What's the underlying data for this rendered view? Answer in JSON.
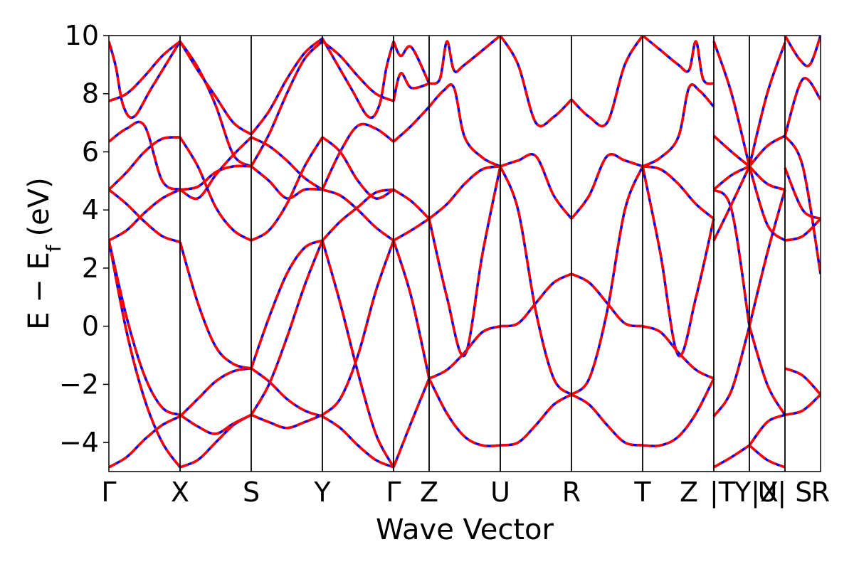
{
  "chart_data": {
    "type": "line",
    "title": "",
    "xlabel": "Wave Vector",
    "ylabel": "E − E",
    "ylabel_sub": "f",
    "ylabel_unit": "(eV)",
    "ylim": [
      -5,
      10
    ],
    "yticks": [
      -4,
      -2,
      0,
      2,
      4,
      6,
      8,
      10
    ],
    "ytick_labels": [
      "−4",
      "−2",
      "0",
      "2",
      "4",
      "6",
      "8",
      "10"
    ],
    "grid": false,
    "path_positions": [
      0,
      1,
      2,
      3,
      4,
      4.5,
      5.5,
      6.5,
      7.5,
      8.5,
      9.0,
      9.5,
      10.0
    ],
    "kpoint_labels": [
      "Γ",
      "X",
      "S",
      "Y",
      "Γ",
      "Z",
      "U",
      "R",
      "T",
      "Z",
      "|T",
      "Y|X",
      "U| S",
      "R"
    ],
    "kpoint_label_positions": [
      0,
      1,
      2,
      3,
      4,
      4.5,
      5.5,
      6.5,
      7.5,
      8.15,
      8.62,
      9.1,
      9.5,
      10.0
    ],
    "series_styles": [
      {
        "line": "solid",
        "color": "#0000ff"
      },
      {
        "line": "dashed",
        "color": "#ff0000"
      }
    ],
    "bands": [
      {
        "x": [
          0,
          0.25,
          0.5,
          0.75,
          1
        ],
        "y": [
          -4.85,
          -4.5,
          -3.9,
          -3.4,
          -3.1
        ]
      },
      {
        "x": [
          1,
          1.25,
          1.5,
          1.75,
          2
        ],
        "y": [
          -3.1,
          -2.5,
          -1.9,
          -1.55,
          -1.45
        ]
      },
      {
        "x": [
          2,
          2.25,
          2.5,
          2.75,
          3
        ],
        "y": [
          -1.45,
          -1.9,
          -2.5,
          -2.9,
          -3.1
        ]
      },
      {
        "x": [
          3,
          3.25,
          3.5,
          3.75,
          4
        ],
        "y": [
          -3.1,
          -3.5,
          -4.1,
          -4.6,
          -4.85
        ]
      },
      {
        "x": [
          0,
          0.25,
          0.5,
          0.75,
          1
        ],
        "y": [
          2.95,
          0.3,
          -1.7,
          -2.8,
          -3.05
        ]
      },
      {
        "x": [
          1,
          1.25,
          1.5,
          1.75,
          2
        ],
        "y": [
          -3.05,
          -3.45,
          -3.7,
          -3.35,
          -3.05
        ]
      },
      {
        "x": [
          2,
          2.25,
          2.5,
          2.75,
          3
        ],
        "y": [
          -3.05,
          -3.3,
          -3.5,
          -3.3,
          -3.05
        ]
      },
      {
        "x": [
          3,
          3.25,
          3.5,
          3.75,
          4
        ],
        "y": [
          -3.05,
          -2.5,
          -1.0,
          1.2,
          2.95
        ]
      },
      {
        "x": [
          0,
          0.25,
          0.5,
          0.75,
          1
        ],
        "y": [
          2.95,
          -0.2,
          -2.5,
          -4.0,
          -4.85
        ]
      },
      {
        "x": [
          1,
          1.25,
          1.5,
          1.75,
          2
        ],
        "y": [
          -4.85,
          -4.6,
          -4.0,
          -3.4,
          -3.05
        ]
      },
      {
        "x": [
          2,
          2.25,
          2.5,
          2.75,
          3
        ],
        "y": [
          -3.05,
          -2.0,
          -0.4,
          1.4,
          2.95
        ]
      },
      {
        "x": [
          3,
          3.25,
          3.5,
          3.75,
          4
        ],
        "y": [
          2.95,
          0.8,
          -1.6,
          -3.7,
          -4.85
        ]
      },
      {
        "x": [
          0,
          0.25,
          0.5,
          0.75,
          1
        ],
        "y": [
          4.7,
          4.2,
          3.6,
          3.1,
          2.9
        ]
      },
      {
        "x": [
          1,
          1.25,
          1.5,
          1.75,
          2
        ],
        "y": [
          2.9,
          0.8,
          -0.7,
          -1.3,
          -1.45
        ]
      },
      {
        "x": [
          2,
          2.25,
          2.5,
          2.75,
          3
        ],
        "y": [
          -1.45,
          0.3,
          1.8,
          2.7,
          2.95
        ]
      },
      {
        "x": [
          3,
          3.25,
          3.5,
          3.75,
          4
        ],
        "y": [
          2.95,
          3.6,
          4.1,
          4.6,
          4.7
        ]
      },
      {
        "x": [
          0,
          0.25,
          0.5,
          0.75,
          1
        ],
        "y": [
          2.95,
          3.3,
          3.9,
          4.4,
          4.7
        ]
      },
      {
        "x": [
          1,
          1.25,
          1.5,
          1.75,
          2
        ],
        "y": [
          4.7,
          4.8,
          5.3,
          5.5,
          5.5
        ]
      },
      {
        "x": [
          2,
          2.25,
          2.5,
          2.75,
          3
        ],
        "y": [
          5.5,
          5.0,
          4.4,
          4.7,
          4.7
        ]
      },
      {
        "x": [
          3,
          3.25,
          3.5,
          3.75,
          4
        ],
        "y": [
          4.7,
          4.5,
          4.0,
          3.4,
          2.95
        ]
      },
      {
        "x": [
          0,
          0.25,
          0.5,
          0.75,
          1
        ],
        "y": [
          4.7,
          5.3,
          6.0,
          6.45,
          6.5
        ]
      },
      {
        "x": [
          1,
          1.25,
          1.5,
          1.75,
          2
        ],
        "y": [
          6.5,
          5.5,
          4.1,
          3.3,
          2.95
        ]
      },
      {
        "x": [
          2,
          2.25,
          2.5,
          2.75,
          3
        ],
        "y": [
          2.95,
          3.3,
          4.2,
          5.5,
          6.5
        ]
      },
      {
        "x": [
          3,
          3.25,
          3.5,
          3.75,
          4
        ],
        "y": [
          6.5,
          6.0,
          5.0,
          4.4,
          4.7
        ]
      },
      {
        "x": [
          0,
          0.25,
          0.5,
          0.75,
          1
        ],
        "y": [
          6.35,
          6.8,
          6.9,
          5.0,
          4.7
        ]
      },
      {
        "x": [
          1,
          1.25,
          1.5,
          1.75,
          2
        ],
        "y": [
          4.7,
          4.4,
          5.2,
          5.9,
          6.5
        ]
      },
      {
        "x": [
          2,
          2.25,
          2.5,
          2.75,
          3
        ],
        "y": [
          6.5,
          6.2,
          5.7,
          5.1,
          4.7
        ]
      },
      {
        "x": [
          3,
          3.25,
          3.5,
          3.75,
          4
        ],
        "y": [
          4.7,
          6.0,
          6.9,
          6.8,
          6.35
        ]
      },
      {
        "x": [
          0,
          0.25,
          0.5,
          0.75,
          1
        ],
        "y": [
          7.75,
          8.0,
          8.6,
          9.3,
          9.8
        ]
      },
      {
        "x": [
          1,
          1.25,
          1.5,
          1.75,
          2
        ],
        "y": [
          9.8,
          8.9,
          7.6,
          5.9,
          5.5
        ]
      },
      {
        "x": [
          2,
          2.25,
          2.5,
          2.75,
          3
        ],
        "y": [
          5.5,
          6.6,
          8.0,
          9.2,
          9.8
        ]
      },
      {
        "x": [
          3,
          3.25,
          3.5,
          3.75,
          4
        ],
        "y": [
          9.8,
          9.3,
          8.6,
          8.0,
          7.75
        ]
      },
      {
        "x": [
          0,
          0.1,
          0.2,
          0.35,
          0.6,
          1
        ],
        "y": [
          9.8,
          8.9,
          7.6,
          7.2,
          8.2,
          9.8
        ]
      },
      {
        "x": [
          1,
          1.25,
          1.5,
          1.75,
          2
        ],
        "y": [
          9.8,
          8.8,
          7.9,
          7.0,
          6.6
        ]
      },
      {
        "x": [
          2,
          2.25,
          2.5,
          2.75,
          3
        ],
        "y": [
          6.6,
          7.4,
          8.5,
          9.4,
          9.9
        ]
      },
      {
        "x": [
          3,
          3.4,
          3.65,
          3.8,
          3.9,
          4
        ],
        "y": [
          9.9,
          8.2,
          7.2,
          7.6,
          8.9,
          9.8
        ]
      },
      {
        "x": [
          4,
          4.25,
          4.5
        ],
        "y": [
          -4.85,
          -3.3,
          -1.8
        ]
      },
      {
        "x": [
          4,
          4.25,
          4.5
        ],
        "y": [
          2.95,
          1.0,
          -1.8
        ]
      },
      {
        "x": [
          4,
          4.25,
          4.5
        ],
        "y": [
          2.95,
          3.3,
          3.7
        ]
      },
      {
        "x": [
          4,
          4.25,
          4.5
        ],
        "y": [
          4.7,
          4.3,
          3.7
        ]
      },
      {
        "x": [
          4,
          4.25,
          4.5
        ],
        "y": [
          6.35,
          6.9,
          7.55
        ]
      },
      {
        "x": [
          4,
          4.1,
          4.25,
          4.5
        ],
        "y": [
          7.75,
          8.7,
          8.2,
          8.35
        ]
      },
      {
        "x": [
          4,
          4.1,
          4.25,
          4.5
        ],
        "y": [
          9.8,
          9.3,
          9.6,
          8.35
        ]
      },
      {
        "x": [
          4.5,
          4.75,
          5.0,
          5.25,
          5.5
        ],
        "y": [
          -1.8,
          -1.5,
          -0.9,
          -0.2,
          0.0
        ]
      },
      {
        "x": [
          4.5,
          4.75,
          5.0,
          5.25,
          5.5
        ],
        "y": [
          -1.8,
          -3.0,
          -3.8,
          -4.1,
          -4.1
        ]
      },
      {
        "x": [
          4.5,
          4.75,
          5.0,
          5.25,
          5.5
        ],
        "y": [
          3.7,
          4.2,
          4.9,
          5.4,
          5.5
        ]
      },
      {
        "x": [
          4.5,
          4.75,
          5.0,
          5.25,
          5.5
        ],
        "y": [
          3.7,
          1.0,
          -1.0,
          2.5,
          5.5
        ]
      },
      {
        "x": [
          4.5,
          4.7,
          4.85,
          5.0,
          5.25,
          5.5
        ],
        "y": [
          7.55,
          8.1,
          8.2,
          6.5,
          5.8,
          5.5
        ]
      },
      {
        "x": [
          4.5,
          4.65,
          4.75,
          4.85,
          5.0,
          5.5
        ],
        "y": [
          8.35,
          8.5,
          9.8,
          8.8,
          9.0,
          10.0
        ]
      },
      {
        "x": [
          5.5,
          5.75,
          6.0,
          6.25,
          6.5
        ],
        "y": [
          0.0,
          0.1,
          0.8,
          1.5,
          1.8
        ]
      },
      {
        "x": [
          5.5,
          5.75,
          6.0,
          6.25,
          6.5
        ],
        "y": [
          -4.1,
          -4.0,
          -3.4,
          -2.7,
          -2.35
        ]
      },
      {
        "x": [
          5.5,
          5.75,
          6.0,
          6.25,
          6.5
        ],
        "y": [
          5.5,
          5.7,
          5.85,
          4.5,
          3.7
        ]
      },
      {
        "x": [
          5.5,
          5.75,
          6.0,
          6.25,
          6.5
        ],
        "y": [
          5.5,
          4.0,
          0.5,
          -1.8,
          -2.35
        ]
      },
      {
        "x": [
          5.5,
          5.75,
          6.0,
          6.25,
          6.5
        ],
        "y": [
          10.0,
          9.0,
          7.0,
          7.2,
          7.8
        ]
      },
      {
        "x": [
          6.5,
          6.75,
          7.0,
          7.25,
          7.5
        ],
        "y": [
          1.8,
          1.5,
          0.8,
          0.1,
          0.0
        ]
      },
      {
        "x": [
          6.5,
          6.75,
          7.0,
          7.25,
          7.5
        ],
        "y": [
          -2.35,
          -2.7,
          -3.4,
          -4.0,
          -4.1
        ]
      },
      {
        "x": [
          6.5,
          6.75,
          7.0,
          7.25,
          7.5
        ],
        "y": [
          3.7,
          4.5,
          5.85,
          5.7,
          5.5
        ]
      },
      {
        "x": [
          6.5,
          6.75,
          7.0,
          7.25,
          7.5
        ],
        "y": [
          -2.35,
          -1.8,
          0.5,
          4.0,
          5.5
        ]
      },
      {
        "x": [
          6.5,
          6.75,
          7.0,
          7.25,
          7.5
        ],
        "y": [
          7.8,
          7.2,
          7.0,
          9.0,
          10.0
        ]
      },
      {
        "x": [
          7.5,
          7.75,
          8.0,
          8.25,
          8.5
        ],
        "y": [
          0.0,
          -0.2,
          -0.9,
          -1.5,
          -1.8
        ]
      },
      {
        "x": [
          7.5,
          7.75,
          8.0,
          8.25,
          8.5
        ],
        "y": [
          -4.1,
          -4.1,
          -3.8,
          -3.0,
          -1.8
        ]
      },
      {
        "x": [
          7.5,
          7.75,
          8.0,
          8.25,
          8.5
        ],
        "y": [
          5.5,
          5.4,
          4.9,
          4.2,
          3.7
        ]
      },
      {
        "x": [
          7.5,
          7.75,
          8.0,
          8.25,
          8.5
        ],
        "y": [
          5.5,
          2.5,
          -1.0,
          1.0,
          3.7
        ]
      },
      {
        "x": [
          7.5,
          7.75,
          8.0,
          8.15,
          8.3,
          8.5
        ],
        "y": [
          5.5,
          5.8,
          6.5,
          8.2,
          8.1,
          7.55
        ]
      },
      {
        "x": [
          7.5,
          7.75,
          8.0,
          8.15,
          8.25,
          8.35,
          8.5
        ],
        "y": [
          10.0,
          9.5,
          9.0,
          8.8,
          9.8,
          8.5,
          8.35
        ]
      },
      {
        "x": [
          8.5,
          8.75,
          9.0
        ],
        "y": [
          -4.85,
          -4.5,
          -4.1
        ]
      },
      {
        "x": [
          8.5,
          8.75,
          9.0
        ],
        "y": [
          -3.1,
          -2.2,
          0.0
        ]
      },
      {
        "x": [
          8.5,
          8.75,
          9.0
        ],
        "y": [
          2.95,
          4.2,
          5.5
        ]
      },
      {
        "x": [
          8.5,
          8.75,
          9.0
        ],
        "y": [
          4.7,
          4.0,
          0.0
        ]
      },
      {
        "x": [
          8.5,
          8.75,
          9.0
        ],
        "y": [
          4.7,
          5.2,
          5.5
        ]
      },
      {
        "x": [
          8.5,
          8.75,
          9.0
        ],
        "y": [
          6.55,
          6.0,
          5.5
        ]
      },
      {
        "x": [
          8.5,
          8.75,
          9.0
        ],
        "y": [
          9.8,
          8.0,
          5.5
        ]
      },
      {
        "x": [
          9.0,
          9.25,
          9.5
        ],
        "y": [
          -4.1,
          -3.3,
          -3.05
        ]
      },
      {
        "x": [
          9.0,
          9.25,
          9.5
        ],
        "y": [
          -4.1,
          -4.6,
          -4.85
        ]
      },
      {
        "x": [
          9.0,
          9.25,
          9.5
        ],
        "y": [
          0.0,
          -2.0,
          -3.05
        ]
      },
      {
        "x": [
          9.0,
          9.25,
          9.5
        ],
        "y": [
          0.0,
          2.5,
          4.7
        ]
      },
      {
        "x": [
          9.0,
          9.25,
          9.5
        ],
        "y": [
          5.5,
          3.5,
          2.95
        ]
      },
      {
        "x": [
          9.0,
          9.25,
          9.5
        ],
        "y": [
          5.5,
          4.9,
          4.7
        ]
      },
      {
        "x": [
          9.0,
          9.25,
          9.5
        ],
        "y": [
          5.5,
          6.2,
          6.55
        ]
      },
      {
        "x": [
          9.0,
          9.25,
          9.5
        ],
        "y": [
          5.5,
          8.0,
          9.75
        ]
      },
      {
        "x": [
          9.5,
          9.75,
          10.0
        ],
        "y": [
          -3.05,
          -2.9,
          -2.35
        ]
      },
      {
        "x": [
          9.5,
          9.75,
          10.0
        ],
        "y": [
          -1.45,
          -1.7,
          -2.35
        ]
      },
      {
        "x": [
          9.5,
          9.75,
          10.0
        ],
        "y": [
          2.95,
          3.1,
          3.7
        ]
      },
      {
        "x": [
          9.5,
          9.75,
          10.0
        ],
        "y": [
          5.45,
          4.0,
          3.7
        ]
      },
      {
        "x": [
          9.5,
          9.75,
          10.0
        ],
        "y": [
          6.55,
          5.5,
          1.8
        ]
      },
      {
        "x": [
          9.5,
          9.75,
          10.0
        ],
        "y": [
          6.55,
          8.5,
          7.8
        ]
      },
      {
        "x": [
          9.5,
          9.7,
          9.85,
          10.0
        ],
        "y": [
          10.0,
          9.2,
          9.0,
          10.0
        ]
      }
    ]
  }
}
